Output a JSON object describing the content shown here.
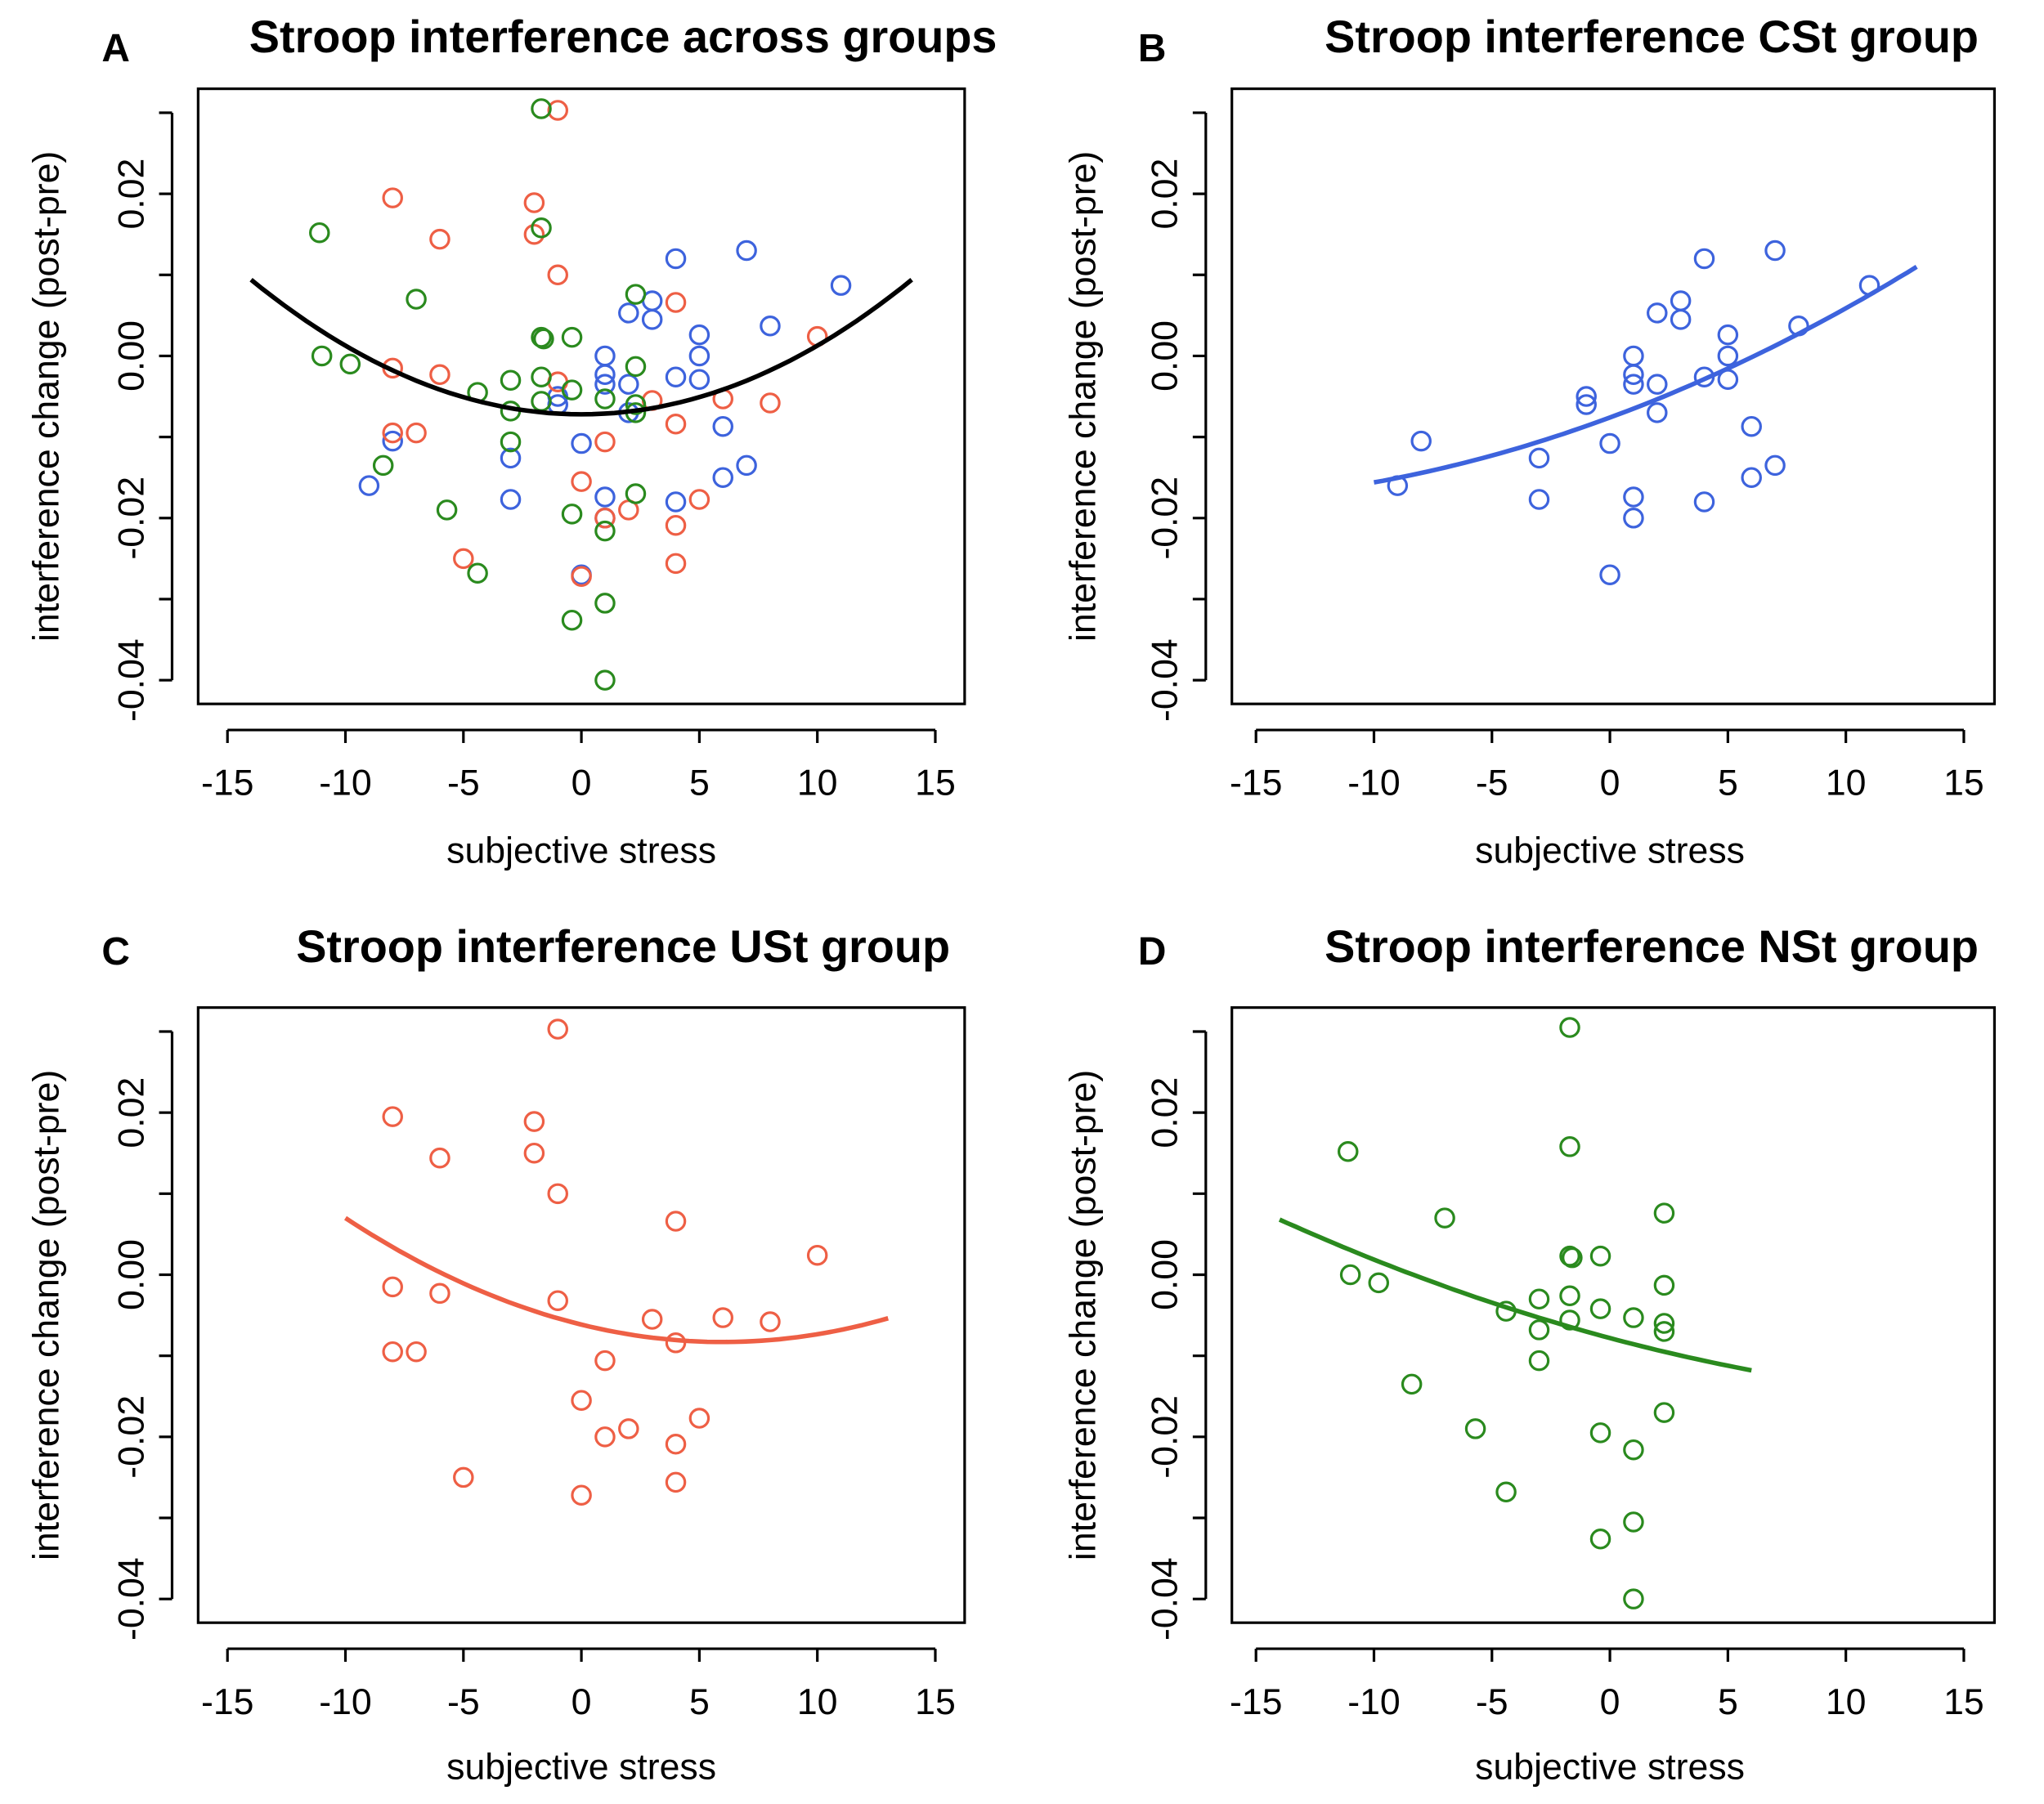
{
  "chart_data": [
    {
      "id": "A",
      "letter": "A",
      "type": "scatter",
      "title": "Stroop interference across groups",
      "xlabel": "subjective stress",
      "ylabel": "interference change (post-pre)",
      "xlim": [
        -15,
        15
      ],
      "ylim": [
        -0.04,
        0.03
      ],
      "groups": [
        "CSt",
        "USt",
        "NSt"
      ],
      "fit": {
        "color": "#000000",
        "range": [
          -14,
          14
        ],
        "coef": [
          -0.0072,
          0.0,
          8.47e-05
        ]
      }
    },
    {
      "id": "B",
      "letter": "B",
      "type": "scatter",
      "title": "Stroop interference CSt group",
      "xlabel": "subjective stress",
      "ylabel": "interference change (post-pre)",
      "xlim": [
        -15,
        15
      ],
      "ylim": [
        -0.04,
        0.03
      ],
      "groups": [
        "CSt"
      ],
      "fit": {
        "color": "#3D63DD",
        "range": [
          -10,
          13
        ],
        "coef": [
          -0.0076,
          0.001074,
          2.74e-05
        ]
      }
    },
    {
      "id": "C",
      "letter": "C",
      "type": "scatter",
      "title": "Stroop interference USt group",
      "xlabel": "subjective stress",
      "ylabel": "interference change (post-pre)",
      "xlim": [
        -15,
        15
      ],
      "ylim": [
        -0.04,
        0.03
      ],
      "groups": [
        "USt"
      ],
      "fit": {
        "color": "#EE5F45",
        "range": [
          -10,
          13
        ],
        "coef": [
          -0.00615,
          -0.000717,
          5.98e-05
        ]
      }
    },
    {
      "id": "D",
      "letter": "D",
      "type": "scatter",
      "title": "Stroop interference NSt group",
      "xlabel": "subjective stress",
      "ylabel": "interference change (post-pre)",
      "xlim": [
        -15,
        15
      ],
      "ylim": [
        -0.04,
        0.03
      ],
      "groups": [
        "NSt"
      ],
      "fit": {
        "color": "#2A8A1E",
        "range": [
          -14,
          6
        ],
        "coef": [
          -0.00781,
          -0.000778,
          1.9e-05
        ]
      }
    }
  ],
  "groups": {
    "CSt": {
      "color": "#3D63DD",
      "points": [
        [
          -9,
          -0.016
        ],
        [
          -8,
          -0.0105
        ],
        [
          -3,
          -0.0126
        ],
        [
          -3,
          -0.0177
        ],
        [
          -1,
          -0.005
        ],
        [
          -1,
          -0.006
        ],
        [
          0,
          -0.0108
        ],
        [
          0,
          -0.027
        ],
        [
          1,
          0.0
        ],
        [
          1,
          -0.0023
        ],
        [
          1,
          -0.0035
        ],
        [
          1,
          -0.0174
        ],
        [
          1,
          -0.02
        ],
        [
          2,
          0.0053
        ],
        [
          2,
          -0.0035
        ],
        [
          2,
          -0.007
        ],
        [
          3,
          0.0068
        ],
        [
          3,
          0.0045
        ],
        [
          4,
          0.012
        ],
        [
          4,
          -0.0026
        ],
        [
          4,
          -0.018
        ],
        [
          5,
          0.0026
        ],
        [
          5,
          0.0
        ],
        [
          5,
          -0.0029
        ],
        [
          6,
          -0.0087
        ],
        [
          6,
          -0.015
        ],
        [
          7,
          0.013
        ],
        [
          7,
          -0.0135
        ],
        [
          8,
          0.0037
        ],
        [
          11,
          0.0087
        ]
      ]
    },
    "USt": {
      "color": "#EE5F45",
      "points": [
        [
          -8,
          0.0195
        ],
        [
          -8,
          -0.0015
        ],
        [
          -8,
          -0.0095
        ],
        [
          -7,
          -0.0095
        ],
        [
          -6,
          0.0144
        ],
        [
          -6,
          -0.0023
        ],
        [
          -5,
          -0.025
        ],
        [
          -2,
          0.0189
        ],
        [
          -2,
          0.015
        ],
        [
          -1,
          0.0303
        ],
        [
          -1,
          0.01
        ],
        [
          -1,
          -0.0032
        ],
        [
          0,
          -0.0155
        ],
        [
          0,
          -0.0272
        ],
        [
          1,
          -0.0106
        ],
        [
          1,
          -0.02
        ],
        [
          2,
          -0.019
        ],
        [
          3,
          -0.0055
        ],
        [
          4,
          0.0066
        ],
        [
          4,
          -0.0084
        ],
        [
          4,
          -0.0209
        ],
        [
          4,
          -0.0256
        ],
        [
          5,
          -0.0177
        ],
        [
          6,
          -0.0053
        ],
        [
          8,
          -0.0058
        ],
        [
          10,
          0.0024
        ]
      ]
    },
    "NSt": {
      "color": "#2A8A1E",
      "points": [
        [
          -11.1,
          0.0152
        ],
        [
          -11,
          0.0
        ],
        [
          -9.8,
          -0.001
        ],
        [
          -8.4,
          -0.0135
        ],
        [
          -7,
          0.007
        ],
        [
          -5.7,
          -0.019
        ],
        [
          -4.4,
          -0.0045
        ],
        [
          -4.4,
          -0.0268
        ],
        [
          -3,
          -0.003
        ],
        [
          -3,
          -0.0068
        ],
        [
          -3,
          -0.0106
        ],
        [
          -1.7,
          0.0305
        ],
        [
          -1.7,
          0.0158
        ],
        [
          -1.7,
          0.0023
        ],
        [
          -1.6,
          0.0021
        ],
        [
          -1.7,
          -0.0026
        ],
        [
          -1.7,
          -0.0056
        ],
        [
          -0.4,
          0.0023
        ],
        [
          -0.4,
          -0.0042
        ],
        [
          -0.4,
          -0.0195
        ],
        [
          -0.4,
          -0.0326
        ],
        [
          1,
          -0.0053
        ],
        [
          1,
          -0.0216
        ],
        [
          1,
          -0.0305
        ],
        [
          1,
          -0.04
        ],
        [
          2.3,
          0.0076
        ],
        [
          2.3,
          -0.0013
        ],
        [
          2.3,
          -0.006
        ],
        [
          2.3,
          -0.007
        ],
        [
          2.3,
          -0.017
        ]
      ]
    }
  },
  "axis": {
    "xticks": [
      -15,
      -10,
      -5,
      0,
      5,
      10,
      15
    ],
    "xtick_labels": [
      "-15",
      "-10",
      "-5",
      "0",
      "5",
      "10",
      "15"
    ],
    "yticks": [
      -0.04,
      -0.03,
      -0.02,
      -0.01,
      0.0,
      0.01,
      0.02,
      0.03
    ],
    "ytick_labels": [
      "-0.04",
      "",
      "-0.02",
      "",
      "0.00",
      "",
      "0.02",
      ""
    ]
  }
}
